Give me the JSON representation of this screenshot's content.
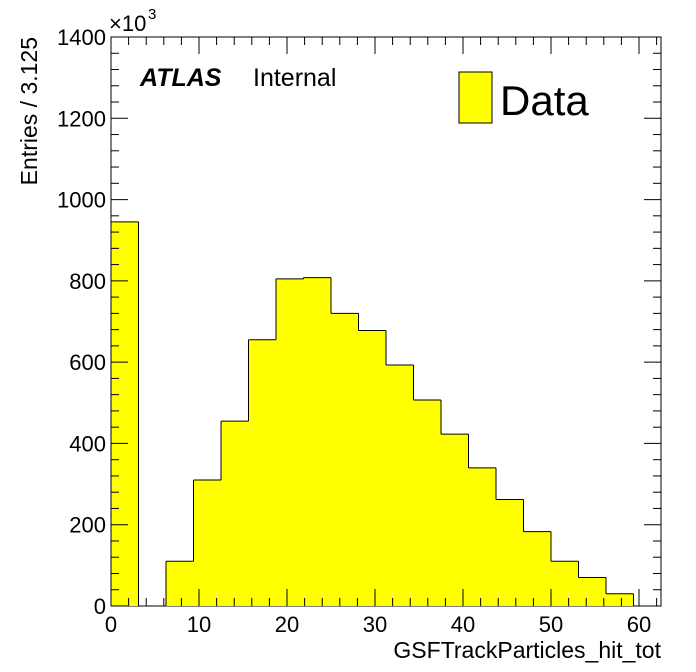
{
  "chart_data": {
    "type": "bar",
    "histogram": true,
    "bin_width": 3.125,
    "x_range": [
      0,
      62.5
    ],
    "ylim": [
      0,
      1400000
    ],
    "y_multiplier_label": "×10",
    "y_multiplier_exponent": "3",
    "xlabel": "GSFTrackParticles_hit_tot",
    "ylabel": "Entries / 3.125",
    "x_ticks": [
      0,
      10,
      20,
      30,
      40,
      50,
      60
    ],
    "x_tick_labels": [
      "0",
      "10",
      "20",
      "30",
      "40",
      "50",
      "60"
    ],
    "y_ticks": [
      0,
      200000,
      400000,
      600000,
      800000,
      1000000,
      1200000,
      1400000
    ],
    "y_tick_labels": [
      "0",
      "200",
      "400",
      "600",
      "800",
      "1000",
      "1200",
      "1400"
    ],
    "bin_edges": [
      0,
      3.125,
      6.25,
      9.375,
      12.5,
      15.625,
      18.75,
      21.875,
      25,
      28.125,
      31.25,
      34.375,
      37.5,
      40.625,
      43.75,
      46.875,
      50,
      53.125,
      56.25,
      59.375,
      62.5
    ],
    "series": [
      {
        "name": "Data",
        "color": "#ffff00",
        "values": [
          945000,
          0,
          110000,
          310000,
          455000,
          655000,
          805000,
          808000,
          720000,
          678000,
          593000,
          507000,
          423000,
          340000,
          262000,
          183000,
          110000,
          70000,
          30000,
          0
        ]
      }
    ],
    "annotation": {
      "atlas": "ATLAS",
      "status": "Internal"
    },
    "legend": {
      "position": "top-right",
      "label": "Data"
    }
  }
}
